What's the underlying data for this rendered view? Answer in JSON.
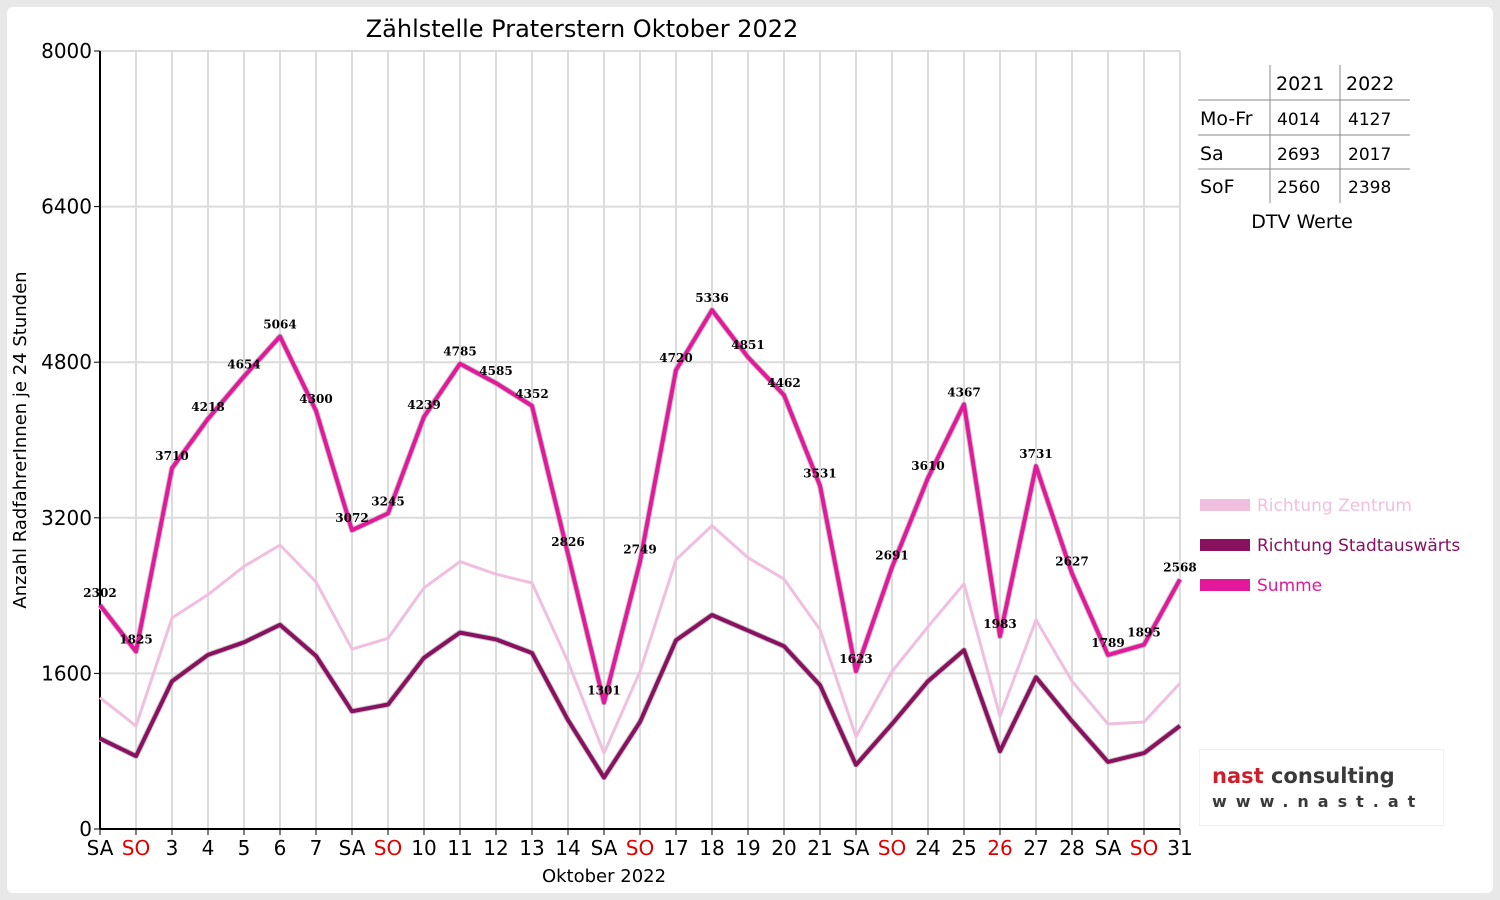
{
  "chart_data": {
    "type": "line",
    "title": "Zählstelle Praterstern Oktober 2022",
    "xlabel": "Oktober 2022",
    "ylabel": "Anzahl RadfahrerInnen je 24 Stunden",
    "ylim": [
      0,
      8000
    ],
    "yticks": [
      "0",
      "1600",
      "3200",
      "4800",
      "6400",
      "8000"
    ],
    "grid": true,
    "legend_position": "right",
    "categories": [
      "SA",
      "SO",
      "3",
      "4",
      "5",
      "6",
      "7",
      "SA",
      "SO",
      "10",
      "11",
      "12",
      "13",
      "14",
      "SA",
      "SO",
      "17",
      "18",
      "19",
      "20",
      "21",
      "SA",
      "SO",
      "24",
      "25",
      "26",
      "27",
      "28",
      "SA",
      "SO",
      "31"
    ],
    "red_categories": [
      1,
      8,
      15,
      22,
      25,
      29
    ],
    "series": [
      {
        "name": "Richtung Zentrum",
        "color": "#f0bfe0",
        "width": 3,
        "values": [
          1350,
          1060,
          2170,
          2410,
          2700,
          2920,
          2540,
          1850,
          1960,
          2480,
          2750,
          2620,
          2530,
          1720,
          780,
          1620,
          2770,
          3120,
          2790,
          2570,
          2050,
          950,
          1620,
          2080,
          2520,
          1160,
          2150,
          1520,
          1080,
          1100,
          1500
        ]
      },
      {
        "name": "Richtung Stadtauswärts",
        "color": "#8a1060",
        "width": 4,
        "values": [
          930,
          750,
          1520,
          1790,
          1920,
          2100,
          1780,
          1210,
          1280,
          1760,
          2020,
          1950,
          1810,
          1120,
          530,
          1100,
          1940,
          2200,
          2040,
          1880,
          1480,
          660,
          1080,
          1520,
          1840,
          800,
          1560,
          1110,
          690,
          780,
          1060
        ]
      },
      {
        "name": "Summe",
        "color": "#e3189a",
        "width": 4,
        "values": [
          2302,
          1825,
          3710,
          4218,
          4654,
          5064,
          4300,
          3072,
          3245,
          4239,
          4785,
          4585,
          4352,
          2826,
          1301,
          2749,
          4720,
          5336,
          4851,
          4462,
          3531,
          1623,
          2691,
          3610,
          4367,
          1983,
          3731,
          2627,
          1789,
          1895,
          2568
        ]
      }
    ],
    "data_labels": [
      "2302",
      "1825",
      "3710",
      "4218",
      "4654",
      "5064",
      "4300",
      "3072",
      "3245",
      "4239",
      "4785",
      "4585",
      "4352",
      "2826",
      "1301",
      "2749",
      "4720",
      "5336",
      "4851",
      "4462",
      "3531",
      "1623",
      "2691",
      "3610",
      "4367",
      "1983",
      "3731",
      "2627",
      "1789",
      "1895",
      "2568"
    ]
  },
  "dtv_table": {
    "headers": [
      "",
      "2021",
      "2022"
    ],
    "rows": [
      {
        "label": "Mo-Fr",
        "v2021": "4014",
        "v2022": "4127"
      },
      {
        "label": "Sa",
        "v2021": "2693",
        "v2022": "2017"
      },
      {
        "label": "SoF",
        "v2021": "2560",
        "v2022": "2398"
      }
    ],
    "caption": "DTV Werte"
  },
  "logo": {
    "line1_a": "nast",
    "line1_b": " consulting",
    "line2": "www.nast.at"
  }
}
